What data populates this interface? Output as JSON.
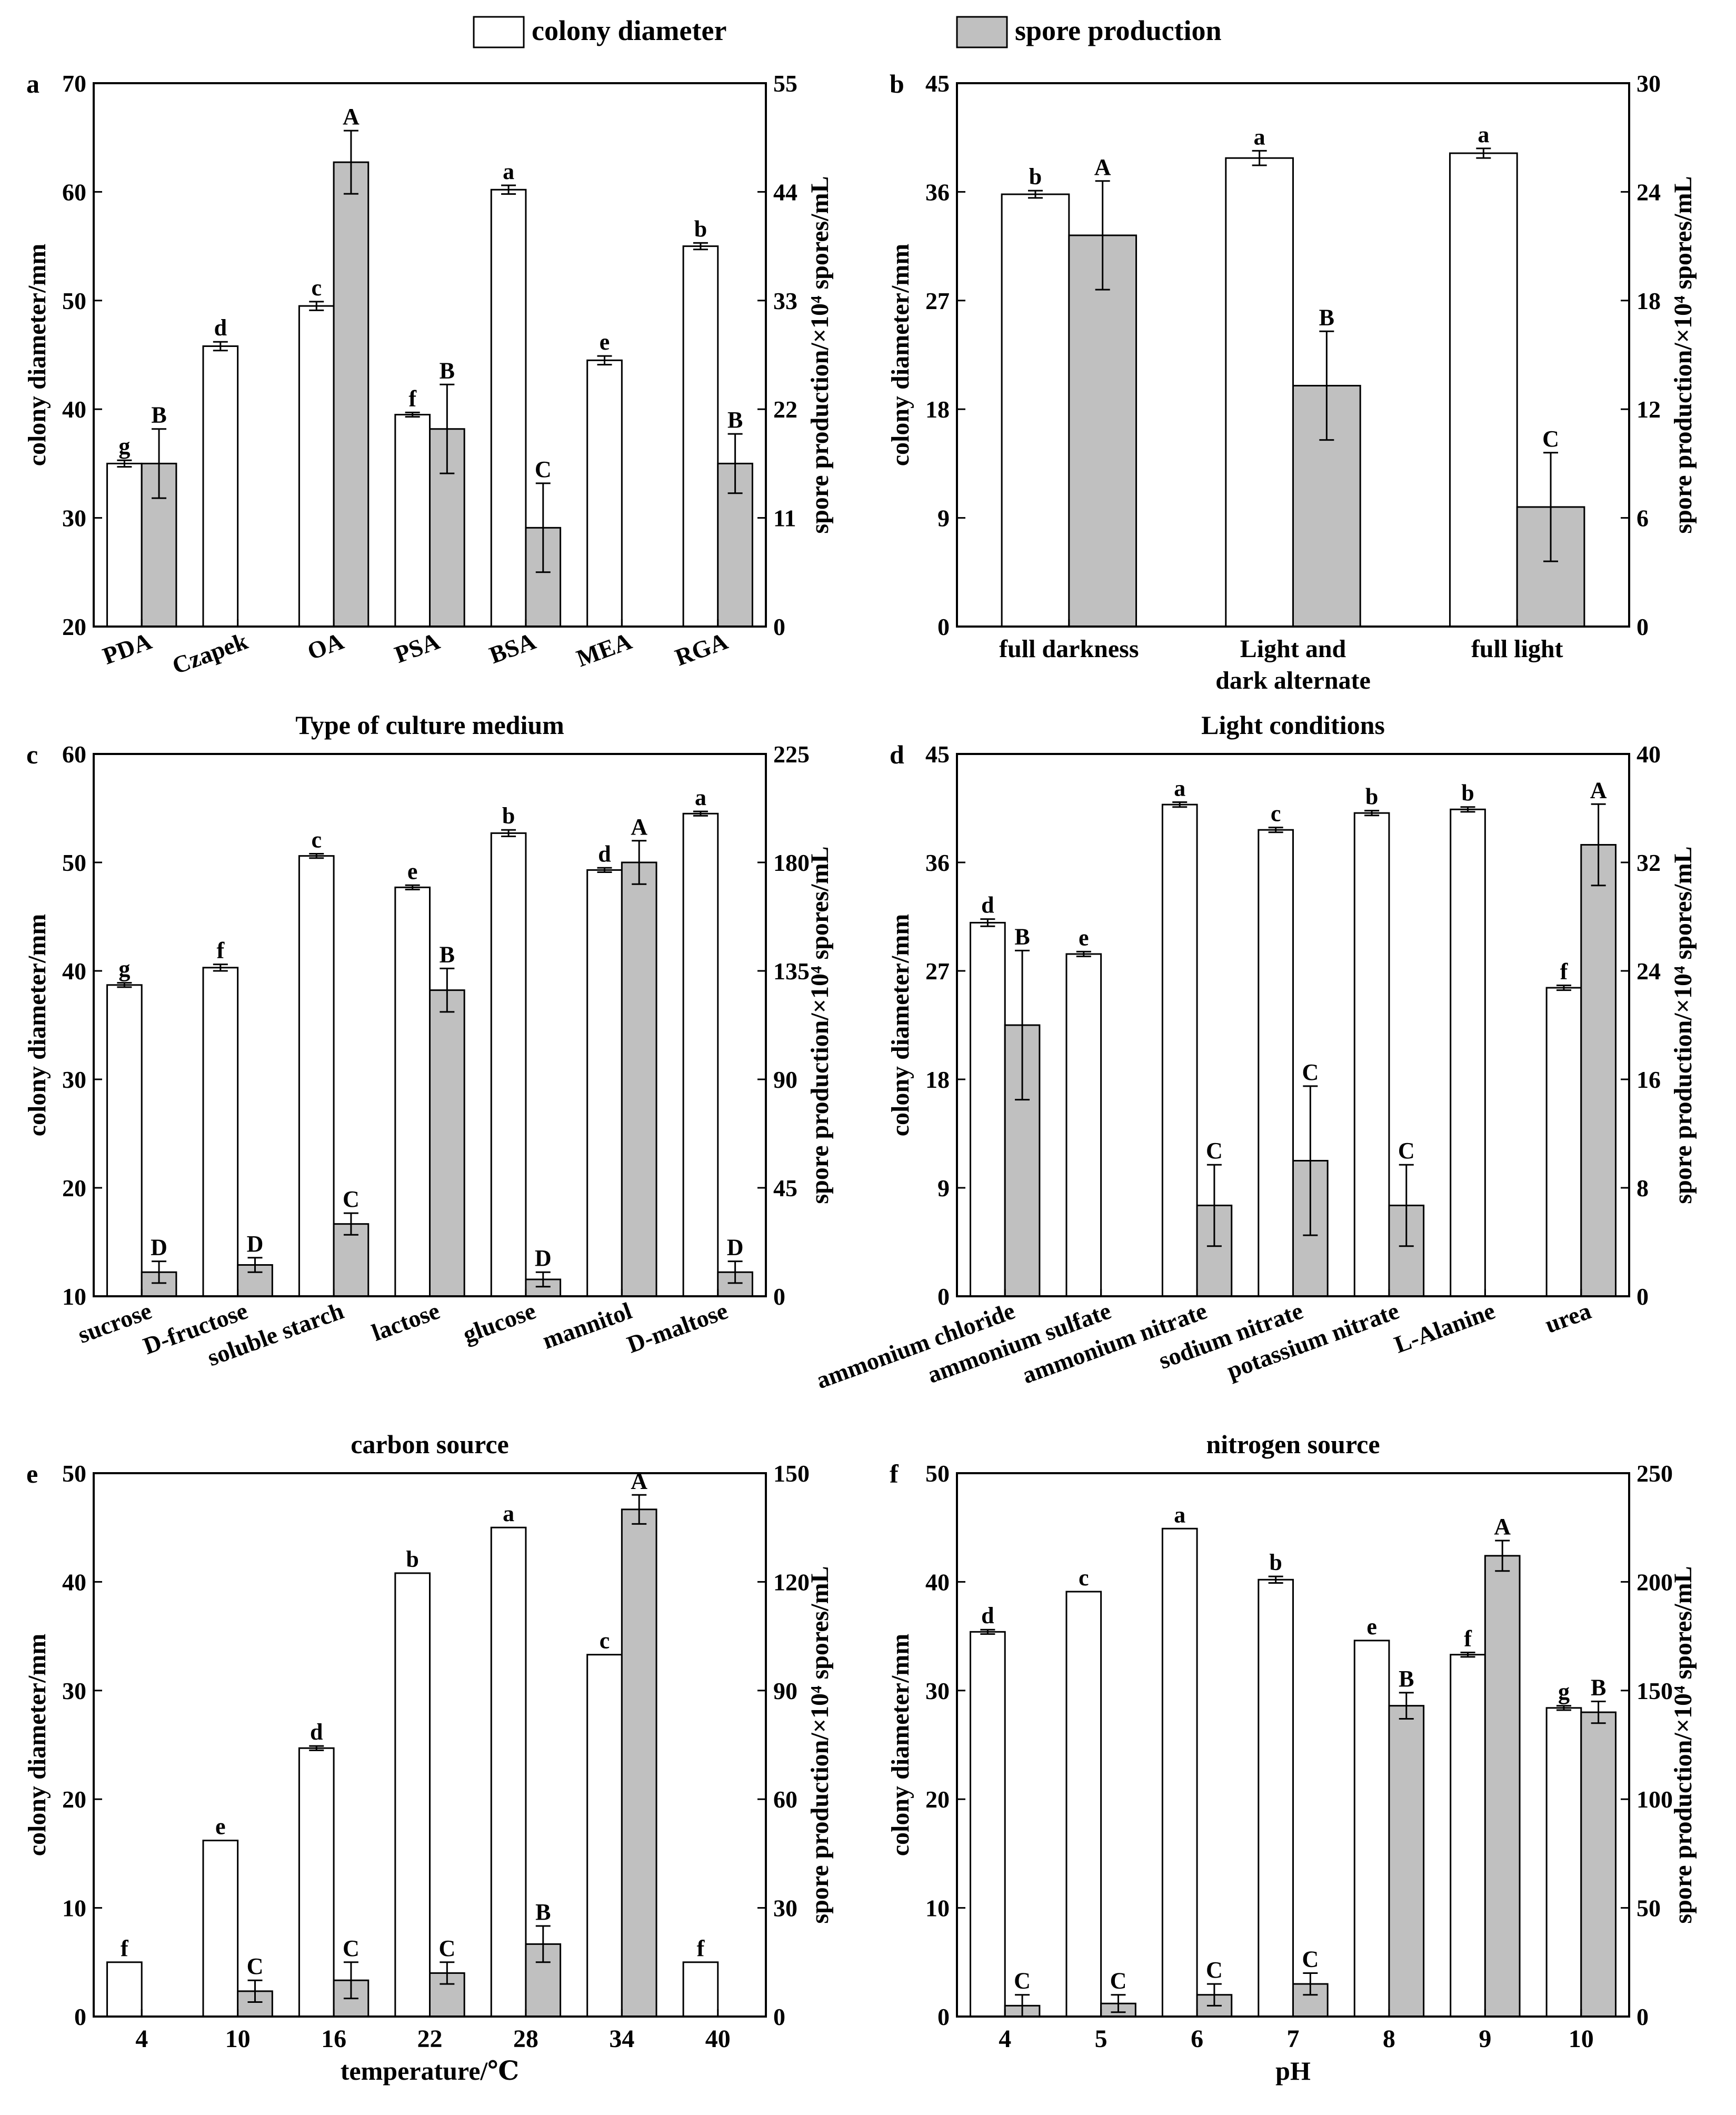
{
  "legend": {
    "colony_label": "colony diameter",
    "spore_label": "spore production",
    "colony_color": "#ffffff",
    "spore_color": "#c0c0c0"
  },
  "chart_data": [
    {
      "panel": "a",
      "type": "bar",
      "xtitle": "Type of culture medium",
      "categories": [
        "PDA",
        "Czapek",
        "OA",
        "PSA",
        "BSA",
        "MEA",
        "RGA"
      ],
      "tick_rotate": true,
      "yleft": {
        "label": "colony diameter/mm",
        "range": [
          20,
          70
        ],
        "ticks": [
          "20",
          "30",
          "40",
          "50",
          "60",
          "70"
        ]
      },
      "yright": {
        "label": "spore production/×10⁴ spores/mL",
        "range": [
          0,
          55
        ],
        "ticks": [
          "0",
          "11",
          "22",
          "33",
          "44",
          "55"
        ]
      },
      "series": [
        {
          "name": "colony diameter",
          "values": [
            35.0,
            45.8,
            49.5,
            39.5,
            60.2,
            44.5,
            55.0
          ],
          "errors": [
            0.3,
            0.4,
            0.4,
            0.2,
            0.4,
            0.4,
            0.3
          ],
          "letters": [
            "g",
            "d",
            "c",
            "f",
            "a",
            "e",
            "b"
          ]
        },
        {
          "name": "spore production",
          "values": [
            16.5,
            null,
            47.0,
            20.0,
            10.0,
            null,
            16.5
          ],
          "errors": [
            3.5,
            null,
            3.2,
            4.5,
            4.5,
            null,
            3.0
          ],
          "letters": [
            "B",
            "",
            "A",
            "B",
            "C",
            "",
            "B"
          ]
        }
      ]
    },
    {
      "panel": "b",
      "type": "bar",
      "xtitle": "Light conditions",
      "categories": [
        "full darkness",
        "Light and\ndark alternate",
        "full light"
      ],
      "tick_rotate": false,
      "yleft": {
        "label": "colony diameter/mm",
        "range": [
          0,
          45
        ],
        "ticks": [
          "0",
          "9",
          "18",
          "27",
          "36",
          "45"
        ]
      },
      "yright": {
        "label": "spore production/×10⁴ spores/mL",
        "range": [
          0,
          30
        ],
        "ticks": [
          "0",
          "6",
          "12",
          "18",
          "24",
          "30"
        ]
      },
      "series": [
        {
          "name": "colony diameter",
          "values": [
            35.8,
            38.8,
            39.2
          ],
          "errors": [
            0.3,
            0.6,
            0.4
          ],
          "letters": [
            "b",
            "a",
            "a"
          ]
        },
        {
          "name": "spore production",
          "values": [
            21.6,
            13.3,
            6.6
          ],
          "errors": [
            3.0,
            3.0,
            3.0
          ],
          "letters": [
            "A",
            "B",
            "C"
          ]
        }
      ]
    },
    {
      "panel": "c",
      "type": "bar",
      "xtitle": "carbon source",
      "categories": [
        "sucrose",
        "D-fructose",
        "soluble starch",
        "lactose",
        "glucose",
        "mannitol",
        "D-maltose"
      ],
      "tick_rotate": true,
      "yleft": {
        "label": "colony diameter/mm",
        "range": [
          10,
          60
        ],
        "ticks": [
          "10",
          "20",
          "30",
          "40",
          "50",
          "60"
        ]
      },
      "yright": {
        "label": "spore production/×10⁴ spores/mL",
        "range": [
          0,
          225
        ],
        "ticks": [
          "0",
          "45",
          "90",
          "135",
          "180",
          "225"
        ]
      },
      "series": [
        {
          "name": "colony diameter",
          "values": [
            38.7,
            40.3,
            50.6,
            47.7,
            52.7,
            49.3,
            54.5
          ],
          "errors": [
            0.2,
            0.3,
            0.2,
            0.2,
            0.3,
            0.2,
            0.2
          ],
          "letters": [
            "g",
            "f",
            "c",
            "e",
            "b",
            "d",
            "a"
          ]
        },
        {
          "name": "spore production",
          "values": [
            10,
            13,
            30,
            127,
            7,
            180,
            10
          ],
          "errors": [
            4.5,
            3.0,
            4.5,
            9.0,
            3.0,
            9.0,
            4.5
          ],
          "letters": [
            "D",
            "D",
            "C",
            "B",
            "D",
            "A",
            "D"
          ]
        }
      ]
    },
    {
      "panel": "d",
      "type": "bar",
      "xtitle": "nitrogen source",
      "categories": [
        "ammonium chloride",
        "ammonium sulfate",
        "ammonium nitrate",
        "sodium nitrate",
        "potassium nitrate",
        "L-Alanine",
        "urea"
      ],
      "tick_rotate": true,
      "yleft": {
        "label": "colony diameter/mm",
        "range": [
          0,
          45
        ],
        "ticks": [
          "0",
          "9",
          "18",
          "27",
          "36",
          "45"
        ]
      },
      "yright": {
        "label": "spore production/×10⁴ spores/mL",
        "range": [
          0,
          40
        ],
        "ticks": [
          "0",
          "8",
          "16",
          "24",
          "32",
          "40"
        ]
      },
      "series": [
        {
          "name": "colony diameter",
          "values": [
            31.0,
            28.4,
            40.8,
            38.7,
            40.1,
            40.4,
            25.6
          ],
          "errors": [
            0.3,
            0.2,
            0.2,
            0.2,
            0.2,
            0.2,
            0.2
          ],
          "letters": [
            "d",
            "e",
            "a",
            "c",
            "b",
            "b",
            "f"
          ]
        },
        {
          "name": "spore production",
          "values": [
            20.0,
            null,
            6.7,
            10.0,
            6.7,
            null,
            33.3
          ],
          "errors": [
            5.5,
            null,
            3.0,
            5.5,
            3.0,
            null,
            3.0
          ],
          "letters": [
            "B",
            "",
            "C",
            "C",
            "C",
            "",
            "A"
          ]
        }
      ]
    },
    {
      "panel": "e",
      "type": "bar",
      "xtitle": "temperature/℃",
      "categories": [
        "4",
        "10",
        "16",
        "22",
        "28",
        "34",
        "40"
      ],
      "tick_rotate": false,
      "yleft": {
        "label": "colony diameter/mm",
        "range": [
          0,
          50
        ],
        "ticks": [
          "0",
          "10",
          "20",
          "30",
          "40",
          "50"
        ]
      },
      "yright": {
        "label": "spore production/×10⁴ spores/mL",
        "range": [
          0,
          150
        ],
        "ticks": [
          "0",
          "30",
          "60",
          "90",
          "120",
          "150"
        ]
      },
      "series": [
        {
          "name": "colony diameter",
          "values": [
            5.0,
            16.2,
            24.7,
            40.8,
            45.0,
            33.3,
            5.0
          ],
          "errors": [
            null,
            null,
            0.2,
            null,
            null,
            null,
            null
          ],
          "letters": [
            "f",
            "e",
            "d",
            "b",
            "a",
            "c",
            "f"
          ]
        },
        {
          "name": "spore production",
          "values": [
            null,
            7.0,
            10.0,
            12.0,
            20.0,
            140.0,
            null
          ],
          "errors": [
            null,
            3.0,
            5.0,
            3.0,
            5.0,
            4.0,
            null
          ],
          "letters": [
            "",
            "C",
            "C",
            "C",
            "B",
            "A",
            ""
          ]
        }
      ]
    },
    {
      "panel": "f",
      "type": "bar",
      "xtitle": "pH",
      "categories": [
        "4",
        "5",
        "6",
        "7",
        "8",
        "9",
        "10"
      ],
      "tick_rotate": false,
      "yleft": {
        "label": "colony diameter/mm",
        "range": [
          0,
          50
        ],
        "ticks": [
          "0",
          "10",
          "20",
          "30",
          "40",
          "50"
        ]
      },
      "yright": {
        "label": "spore production/×10⁴ spores/mL",
        "range": [
          0,
          250
        ],
        "ticks": [
          "0",
          "50",
          "100",
          "150",
          "200",
          "250"
        ]
      },
      "series": [
        {
          "name": "colony diameter",
          "values": [
            35.4,
            39.1,
            44.9,
            40.2,
            34.6,
            33.3,
            28.4
          ],
          "errors": [
            0.2,
            null,
            null,
            0.3,
            null,
            0.2,
            0.2
          ],
          "letters": [
            "d",
            "c",
            "a",
            "b",
            "e",
            "f",
            "g"
          ]
        },
        {
          "name": "spore production",
          "values": [
            5,
            6,
            10,
            15,
            143,
            212,
            140
          ],
          "errors": [
            5,
            4,
            5,
            5,
            6,
            7,
            5
          ],
          "letters": [
            "C",
            "C",
            "C",
            "C",
            "B",
            "A",
            "B"
          ]
        }
      ]
    }
  ]
}
